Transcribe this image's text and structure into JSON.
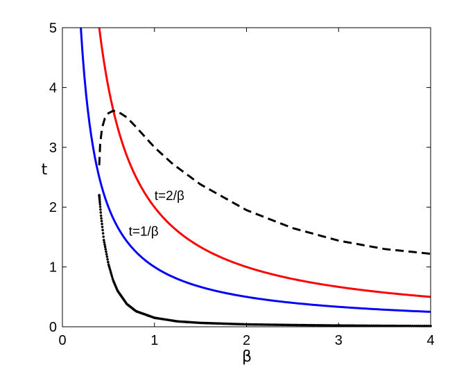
{
  "chart_data": {
    "type": "line",
    "xlabel": "β",
    "ylabel": "t",
    "xlim": [
      0,
      4
    ],
    "ylim": [
      0,
      5
    ],
    "x_ticks": [
      "0",
      "1",
      "2",
      "3",
      "4"
    ],
    "y_ticks": [
      "0",
      "1",
      "2",
      "3",
      "4",
      "5"
    ],
    "grid": false,
    "series": [
      {
        "color": "#0000ff",
        "style": "solid",
        "formula": "t = 1/β",
        "x": [
          0.2,
          0.25,
          0.3,
          0.4,
          0.5,
          0.6,
          0.8,
          1.0,
          1.25,
          1.5,
          2.0,
          2.5,
          3.0,
          3.5,
          4.0
        ],
        "y": [
          5.0,
          4.0,
          3.33,
          2.5,
          2.0,
          1.67,
          1.25,
          1.0,
          0.8,
          0.67,
          0.5,
          0.4,
          0.33,
          0.29,
          0.25
        ]
      },
      {
        "color": "#ff0000",
        "style": "solid",
        "formula": "t = 2/β",
        "x": [
          0.4,
          0.45,
          0.5,
          0.6,
          0.7,
          0.8,
          1.0,
          1.25,
          1.5,
          2.0,
          2.5,
          3.0,
          3.5,
          4.0
        ],
        "y": [
          5.0,
          4.44,
          4.0,
          3.33,
          2.86,
          2.5,
          2.0,
          1.6,
          1.33,
          1.0,
          0.8,
          0.67,
          0.57,
          0.5
        ]
      },
      {
        "color": "#000000",
        "style": "dashed",
        "x": [
          0.4,
          0.41,
          0.43,
          0.46,
          0.5,
          0.55,
          0.6,
          0.7,
          0.8,
          0.9,
          1.0,
          1.2,
          1.5,
          2.0,
          2.5,
          3.0,
          3.5,
          4.0
        ],
        "y": [
          2.7,
          3.05,
          3.32,
          3.48,
          3.57,
          3.61,
          3.6,
          3.5,
          3.34,
          3.17,
          3.0,
          2.72,
          2.38,
          1.95,
          1.65,
          1.44,
          1.3,
          1.22
        ]
      },
      {
        "color": "#000000",
        "style": "dotted",
        "x": [
          0.4,
          0.42,
          0.45,
          0.5,
          0.55,
          0.6,
          0.7,
          0.8,
          1.0,
          1.25,
          1.5,
          2.0,
          2.5,
          3.0,
          3.5,
          4.0
        ],
        "y": [
          2.2,
          1.85,
          1.45,
          1.05,
          0.78,
          0.6,
          0.38,
          0.26,
          0.15,
          0.09,
          0.065,
          0.04,
          0.03,
          0.022,
          0.017,
          0.013
        ]
      }
    ],
    "annotations": [
      {
        "text": "t=2/β",
        "x": 1.0,
        "y": 2.12
      },
      {
        "text": "t=1/β",
        "x": 0.72,
        "y": 1.52
      }
    ]
  }
}
